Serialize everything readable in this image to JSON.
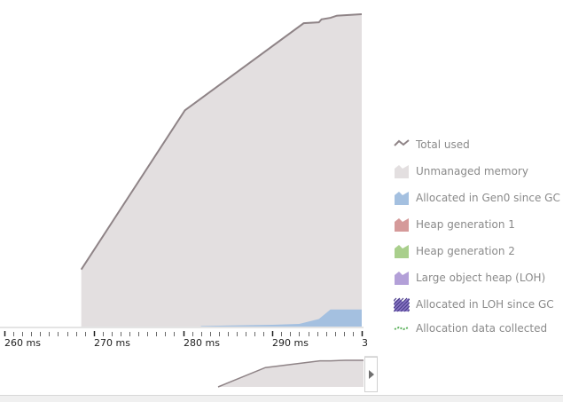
{
  "chart_data": {
    "type": "area",
    "xlabel": "",
    "ylabel": "",
    "x_tick_labels": [
      "260 ms",
      "270 ms",
      "280 ms",
      "290 ms",
      "3"
    ],
    "x_ticks_ms": [
      260,
      270,
      280,
      290,
      300
    ],
    "xlim_ms": [
      259.5,
      300.2
    ],
    "ylim": [
      0,
      100
    ],
    "series": [
      {
        "name": "Total used",
        "points_ms": [
          [
            268.6,
            19
          ],
          [
            280.2,
            72
          ],
          [
            293.5,
            101
          ],
          [
            295.2,
            101.3
          ],
          [
            295.5,
            102.3
          ],
          [
            296.5,
            102.8
          ],
          [
            297.2,
            103.5
          ],
          [
            300.0,
            104
          ]
        ]
      },
      {
        "name": "Allocated in Gen0 since GC",
        "points_ms": [
          [
            282,
            0.2
          ],
          [
            290,
            0.6
          ],
          [
            293,
            0.9
          ],
          [
            295.2,
            2.5
          ],
          [
            296.5,
            5.7
          ],
          [
            300.0,
            5.7
          ]
        ]
      }
    ],
    "overview_points": [
      [
        0.6,
        0
      ],
      [
        0.73,
        0.74
      ],
      [
        0.88,
        1.0
      ],
      [
        0.91,
        1.0
      ],
      [
        0.95,
        1.02
      ],
      [
        1.0,
        1.02
      ]
    ]
  },
  "legend": {
    "items": [
      {
        "key": "total",
        "label": "Total used",
        "color": "#8f8487",
        "swatch": "line"
      },
      {
        "key": "unmanaged",
        "label": "Unmanaged memory",
        "color": "#e3dfe0",
        "swatch": "area"
      },
      {
        "key": "gen0",
        "label": "Allocated in Gen0 since GC",
        "color": "#a4c0e0",
        "swatch": "area"
      },
      {
        "key": "gen1",
        "label": "Heap generation 1",
        "color": "#d59a9a",
        "swatch": "area"
      },
      {
        "key": "gen2",
        "label": "Heap generation 2",
        "color": "#a9cf8c",
        "swatch": "area"
      },
      {
        "key": "loh",
        "label": "Large object heap (LOH)",
        "color": "#b3a0d8",
        "swatch": "area"
      },
      {
        "key": "loh-since-gc",
        "label": "Allocated in LOH since GC",
        "color": "#8a77c6",
        "swatch": "hatched"
      },
      {
        "key": "collected",
        "label": "Allocation data collected",
        "color": "#5fb35f",
        "swatch": "dashed"
      }
    ]
  },
  "colors": {
    "unmanaged_fill": "#e3dfe0",
    "total_line": "#8f8487",
    "gen0_fill": "#a4c0e0",
    "axis": "#1e1e1e"
  },
  "overview": {
    "expand_icon": "chevron-right-icon"
  }
}
